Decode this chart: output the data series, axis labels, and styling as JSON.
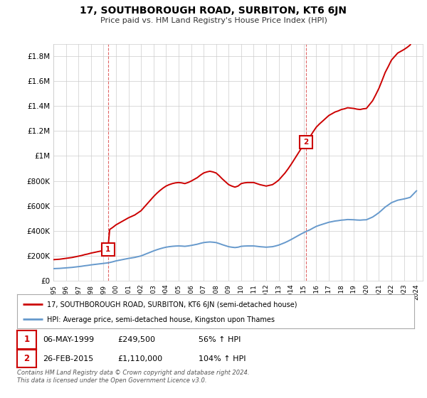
{
  "title": "17, SOUTHBOROUGH ROAD, SURBITON, KT6 6JN",
  "subtitle": "Price paid vs. HM Land Registry's House Price Index (HPI)",
  "ytick_labels": [
    "£0",
    "£200K",
    "£400K",
    "£600K",
    "£800K",
    "£1M",
    "£1.2M",
    "£1.4M",
    "£1.6M",
    "£1.8M"
  ],
  "ytick_values": [
    0,
    200000,
    400000,
    600000,
    800000,
    1000000,
    1200000,
    1400000,
    1600000,
    1800000
  ],
  "ylim": [
    0,
    1900000
  ],
  "xlim_start": 1995.0,
  "xlim_end": 2024.5,
  "sale1_x": 1999.35,
  "sale1_y": 249500,
  "sale1_label": "1",
  "sale1_date": "06-MAY-1999",
  "sale1_price": "£249,500",
  "sale1_hpi": "56% ↑ HPI",
  "sale2_x": 2015.15,
  "sale2_y": 1110000,
  "sale2_label": "2",
  "sale2_date": "26-FEB-2015",
  "sale2_price": "£1,110,000",
  "sale2_hpi": "104% ↑ HPI",
  "line_color_red": "#CC0000",
  "line_color_blue": "#6699CC",
  "vline_color": "#CC0000",
  "background_color": "#FFFFFF",
  "grid_color": "#CCCCCC",
  "legend_label_red": "17, SOUTHBOROUGH ROAD, SURBITON, KT6 6JN (semi-detached house)",
  "legend_label_blue": "HPI: Average price, semi-detached house, Kingston upon Thames",
  "footer": "Contains HM Land Registry data © Crown copyright and database right 2024.\nThis data is licensed under the Open Government Licence v3.0.",
  "hpi_years": [
    1995.0,
    1995.25,
    1995.5,
    1995.75,
    1996.0,
    1996.25,
    1996.5,
    1996.75,
    1997.0,
    1997.25,
    1997.5,
    1997.75,
    1998.0,
    1998.25,
    1998.5,
    1998.75,
    1999.0,
    1999.25,
    1999.5,
    1999.75,
    2000.0,
    2000.25,
    2000.5,
    2000.75,
    2001.0,
    2001.25,
    2001.5,
    2001.75,
    2002.0,
    2002.25,
    2002.5,
    2002.75,
    2003.0,
    2003.25,
    2003.5,
    2003.75,
    2004.0,
    2004.25,
    2004.5,
    2004.75,
    2005.0,
    2005.25,
    2005.5,
    2005.75,
    2006.0,
    2006.25,
    2006.5,
    2006.75,
    2007.0,
    2007.25,
    2007.5,
    2007.75,
    2008.0,
    2008.25,
    2008.5,
    2008.75,
    2009.0,
    2009.25,
    2009.5,
    2009.75,
    2010.0,
    2010.25,
    2010.5,
    2010.75,
    2011.0,
    2011.25,
    2011.5,
    2011.75,
    2012.0,
    2012.25,
    2012.5,
    2012.75,
    2013.0,
    2013.25,
    2013.5,
    2013.75,
    2014.0,
    2014.25,
    2014.5,
    2014.75,
    2015.0,
    2015.25,
    2015.5,
    2015.75,
    2016.0,
    2016.25,
    2016.5,
    2016.75,
    2017.0,
    2017.25,
    2017.5,
    2017.75,
    2018.0,
    2018.25,
    2018.5,
    2018.75,
    2019.0,
    2019.25,
    2019.5,
    2019.75,
    2020.0,
    2020.25,
    2020.5,
    2020.75,
    2021.0,
    2021.25,
    2021.5,
    2021.75,
    2022.0,
    2022.25,
    2022.5,
    2022.75,
    2023.0,
    2023.25,
    2023.5,
    2023.75,
    2024.0
  ],
  "hpi_values": [
    96000,
    97000,
    98000,
    100000,
    102000,
    104000,
    106000,
    109000,
    112000,
    115000,
    119000,
    122000,
    126000,
    129000,
    132000,
    135000,
    138000,
    141000,
    145000,
    151000,
    158000,
    163000,
    168000,
    173000,
    178000,
    182000,
    186000,
    192000,
    198000,
    208000,
    218000,
    228000,
    238000,
    247000,
    255000,
    262000,
    268000,
    272000,
    275000,
    277000,
    278000,
    277000,
    275000,
    278000,
    282000,
    287000,
    292000,
    299000,
    305000,
    308000,
    310000,
    308000,
    305000,
    297000,
    288000,
    280000,
    272000,
    268000,
    265000,
    268000,
    275000,
    277000,
    278000,
    278000,
    278000,
    275000,
    272000,
    270000,
    268000,
    270000,
    272000,
    278000,
    285000,
    295000,
    305000,
    317000,
    330000,
    344000,
    358000,
    372000,
    385000,
    397000,
    408000,
    422000,
    435000,
    444000,
    452000,
    460000,
    468000,
    473000,
    478000,
    481000,
    485000,
    487000,
    490000,
    489000,
    488000,
    486000,
    485000,
    487000,
    488000,
    499000,
    510000,
    527000,
    545000,
    567000,
    590000,
    607000,
    625000,
    635000,
    645000,
    650000,
    655000,
    661000,
    668000,
    694000,
    720000
  ],
  "xtick_years": [
    1995,
    1996,
    1997,
    1998,
    1999,
    2000,
    2001,
    2002,
    2003,
    2004,
    2005,
    2006,
    2007,
    2008,
    2009,
    2010,
    2011,
    2012,
    2013,
    2014,
    2015,
    2016,
    2017,
    2018,
    2019,
    2020,
    2021,
    2022,
    2023,
    2024
  ]
}
